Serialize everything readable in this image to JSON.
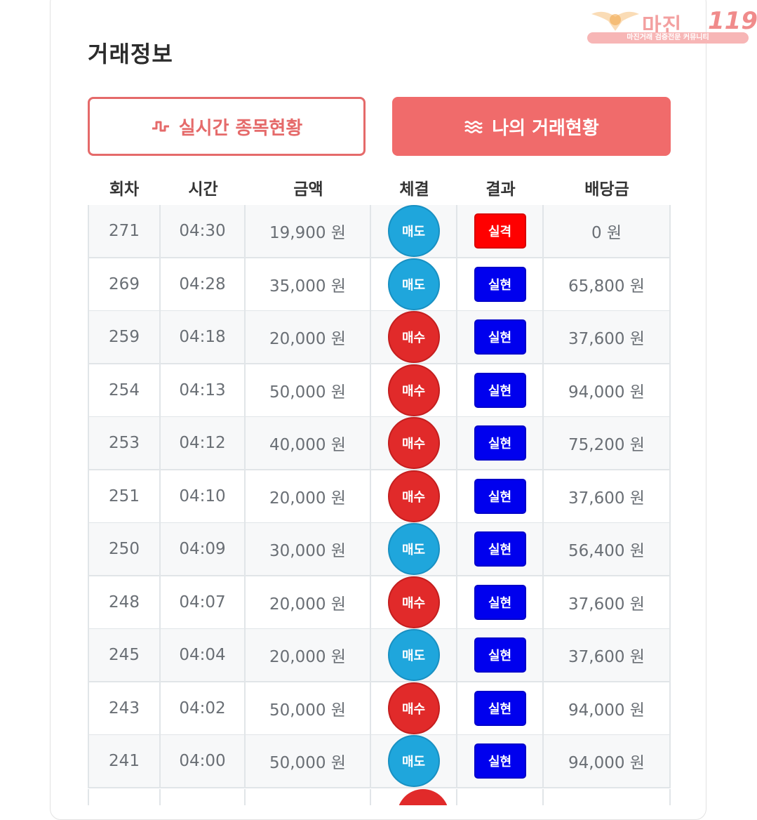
{
  "title": "거래정보",
  "buttons": {
    "realtime_label": "실시간 종목현황",
    "realtime_icon": "pulse-icon",
    "mytrade_label": "나의 거래현황",
    "mytrade_icon": "wave-icon"
  },
  "watermark": {
    "name": "마진",
    "number": "119",
    "tagline": "마진거래 검증전문 커뮤니티"
  },
  "colors": {
    "accent": "#f06b6b",
    "sell": "#1fa6dc",
    "buy": "#e12a2a",
    "win": "#0000ee",
    "lose": "#ff0000"
  },
  "table": {
    "headers": [
      "회차",
      "시간",
      "금액",
      "체결",
      "결과",
      "배당금"
    ],
    "rows": [
      {
        "round": "271",
        "time": "04:30",
        "amount": "19,900 원",
        "side": "매도",
        "side_type": "sell",
        "result": "실격",
        "result_type": "lose",
        "payout": "0 원"
      },
      {
        "round": "269",
        "time": "04:28",
        "amount": "35,000 원",
        "side": "매도",
        "side_type": "sell",
        "result": "실현",
        "result_type": "win",
        "payout": "65,800 원"
      },
      {
        "round": "259",
        "time": "04:18",
        "amount": "20,000 원",
        "side": "매수",
        "side_type": "buy",
        "result": "실현",
        "result_type": "win",
        "payout": "37,600 원"
      },
      {
        "round": "254",
        "time": "04:13",
        "amount": "50,000 원",
        "side": "매수",
        "side_type": "buy",
        "result": "실현",
        "result_type": "win",
        "payout": "94,000 원"
      },
      {
        "round": "253",
        "time": "04:12",
        "amount": "40,000 원",
        "side": "매수",
        "side_type": "buy",
        "result": "실현",
        "result_type": "win",
        "payout": "75,200 원"
      },
      {
        "round": "251",
        "time": "04:10",
        "amount": "20,000 원",
        "side": "매수",
        "side_type": "buy",
        "result": "실현",
        "result_type": "win",
        "payout": "37,600 원"
      },
      {
        "round": "250",
        "time": "04:09",
        "amount": "30,000 원",
        "side": "매도",
        "side_type": "sell",
        "result": "실현",
        "result_type": "win",
        "payout": "56,400 원"
      },
      {
        "round": "248",
        "time": "04:07",
        "amount": "20,000 원",
        "side": "매수",
        "side_type": "buy",
        "result": "실현",
        "result_type": "win",
        "payout": "37,600 원"
      },
      {
        "round": "245",
        "time": "04:04",
        "amount": "20,000 원",
        "side": "매도",
        "side_type": "sell",
        "result": "실현",
        "result_type": "win",
        "payout": "37,600 원"
      },
      {
        "round": "243",
        "time": "04:02",
        "amount": "50,000 원",
        "side": "매수",
        "side_type": "buy",
        "result": "실현",
        "result_type": "win",
        "payout": "94,000 원"
      },
      {
        "round": "241",
        "time": "04:00",
        "amount": "50,000 원",
        "side": "매도",
        "side_type": "sell",
        "result": "실현",
        "result_type": "win",
        "payout": "94,000 원"
      }
    ]
  }
}
